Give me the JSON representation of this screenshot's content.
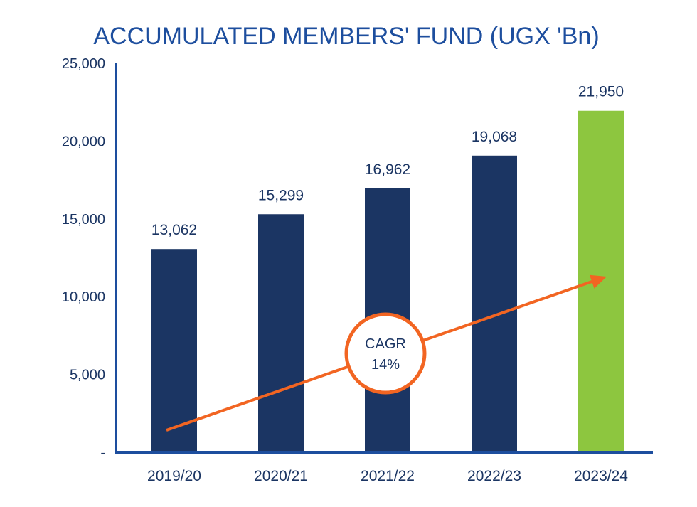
{
  "chart_data": {
    "type": "bar",
    "title": "ACCUMULATED MEMBERS' FUND (UGX 'Bn)",
    "categories": [
      "2019/20",
      "2020/21",
      "2021/22",
      "2022/23",
      "2023/24"
    ],
    "values": [
      13062,
      15299,
      16962,
      19068,
      21950
    ],
    "value_labels": [
      "13,062",
      "15,299",
      "16,962",
      "19,068",
      "21,950"
    ],
    "bar_colors": [
      "#1b3563",
      "#1b3563",
      "#1b3563",
      "#1b3563",
      "#8dc63f"
    ],
    "ylim": [
      0,
      25000
    ],
    "yticks": [
      0,
      5000,
      10000,
      15000,
      20000,
      25000
    ],
    "ytick_labels": [
      "-",
      "5,000",
      "10,000",
      "15,000",
      "20,000",
      "25,000"
    ],
    "xlabel": "",
    "ylabel": "",
    "grid": false,
    "annotation": {
      "label_line1": "CAGR",
      "label_line2": "14%",
      "arrow_color": "#f26522",
      "trend_from_category": "2019/20",
      "trend_to_category": "2023/24"
    },
    "colors": {
      "title": "#1d4e9e",
      "axis": "#1d4e9e",
      "text": "#1b3563",
      "primary_bar": "#1b3563",
      "highlight_bar": "#8dc63f",
      "accent": "#f26522"
    }
  }
}
